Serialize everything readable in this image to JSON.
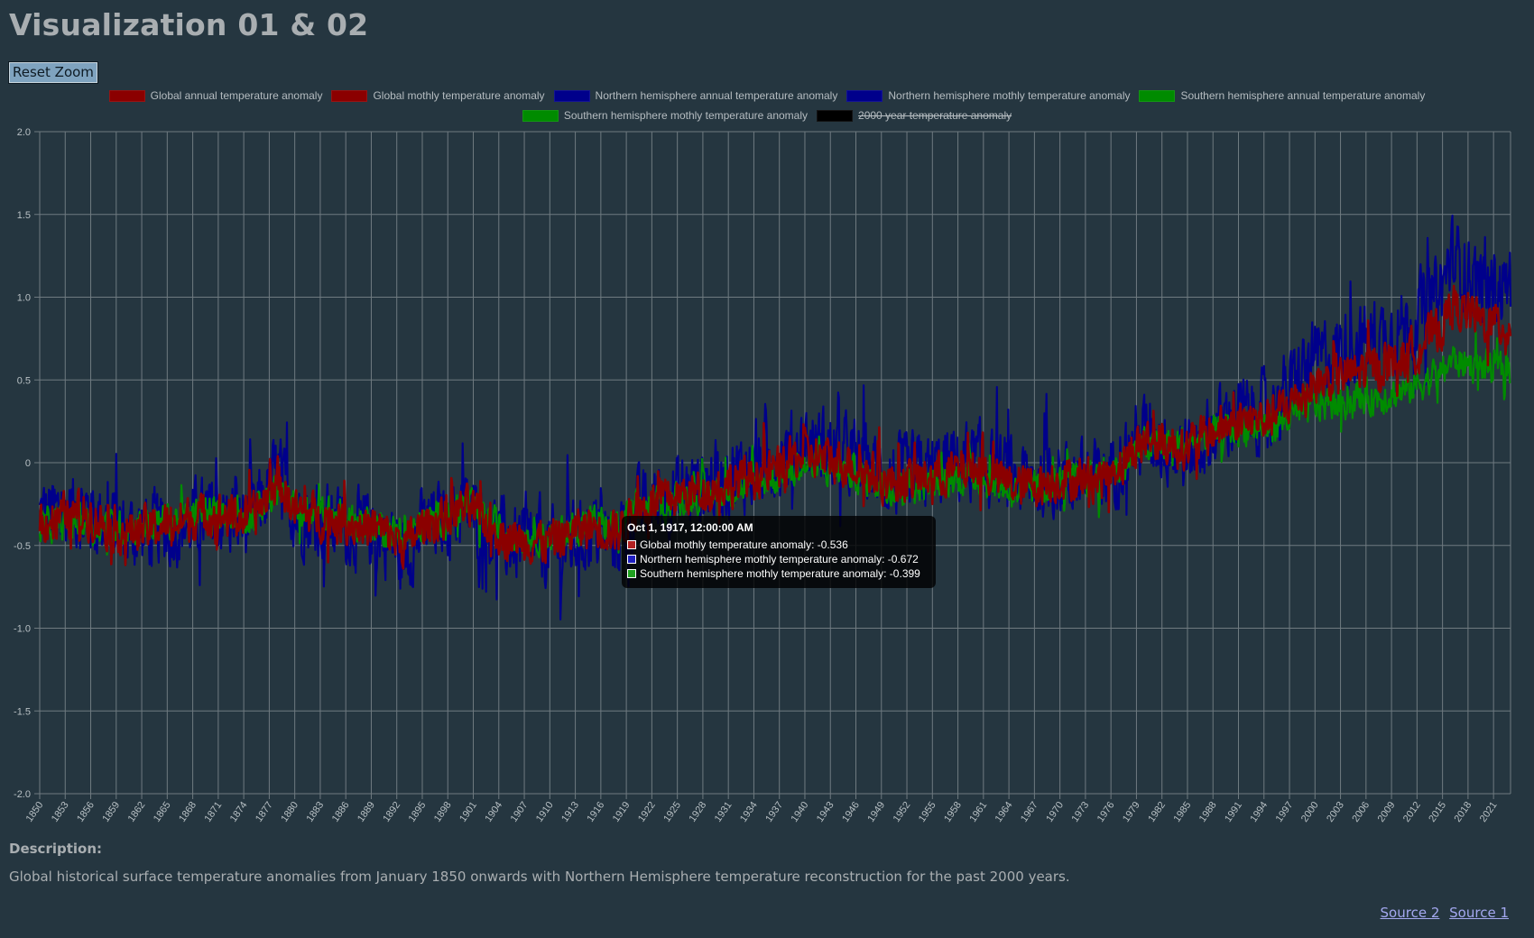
{
  "page": {
    "title": "Visualization 01 & 02",
    "reset_zoom_label": "Reset Zoom",
    "description_heading": "Description:",
    "description_text": "Global historical surface temperature anomalies from January 1850 onwards with Northern Hemisphere temperature reconstruction for the past 2000 years.",
    "sources": [
      "Source 2",
      "Source 1"
    ]
  },
  "colors": {
    "background": "#253640",
    "global": "#8b0000",
    "northern": "#00008b",
    "southern": "#008b00",
    "two_thousand": "#000000",
    "grid": "#6f7a80",
    "tick_text": "#b8c0c4"
  },
  "chart_data": {
    "type": "line",
    "title": "",
    "xlabel": "",
    "ylabel": "",
    "xlim": [
      1850,
      2023
    ],
    "ylim": [
      -2.0,
      2.0
    ],
    "y_ticks": [
      "2.0",
      "1.5",
      "1.0",
      "0.5",
      "0",
      "-0.5",
      "-1.0",
      "-1.5",
      "-2.0"
    ],
    "x_tick_labels": [
      "1850",
      "1853",
      "1856",
      "1859",
      "1862",
      "1865",
      "1868",
      "1871",
      "1874",
      "1877",
      "1880",
      "1883",
      "1886",
      "1889",
      "1892",
      "1895",
      "1898",
      "1901",
      "1904",
      "1907",
      "1910",
      "1913",
      "1916",
      "1919",
      "1922",
      "1925",
      "1928",
      "1931",
      "1934",
      "1937",
      "1940",
      "1943",
      "1946",
      "1949",
      "1952",
      "1955",
      "1958",
      "1961",
      "1964",
      "1967",
      "1970",
      "1973",
      "1976",
      "1979",
      "1982",
      "1985",
      "1988",
      "1991",
      "1994",
      "1997",
      "2000",
      "2003",
      "2006",
      "2009",
      "2012",
      "2015",
      "2018",
      "2021"
    ],
    "grid": true,
    "legend_position": "top",
    "legend": [
      {
        "label": "Global annual temperature anomaly",
        "color": "#8b0000",
        "hidden": false
      },
      {
        "label": "Global mothly temperature anomaly",
        "color": "#8b0000",
        "hidden": false
      },
      {
        "label": "Northern hemisphere annual temperature anomaly",
        "color": "#00008b",
        "hidden": false
      },
      {
        "label": "Northern hemisphere mothly temperature anomaly",
        "color": "#00008b",
        "hidden": false
      },
      {
        "label": "Southern hemisphere annual temperature anomaly",
        "color": "#008b00",
        "hidden": false
      },
      {
        "label": "Southern hemisphere mothly temperature anomaly",
        "color": "#008b00",
        "hidden": false
      },
      {
        "label": "2000 year temperature anomaly",
        "color": "#000000",
        "hidden": true
      }
    ],
    "series": [
      {
        "name": "Northern hemisphere mothly temperature anomaly",
        "color": "#00008b",
        "width": 2.2,
        "x": [
          1850,
          1855,
          1860,
          1865,
          1870,
          1875,
          1878,
          1880,
          1885,
          1890,
          1893,
          1895,
          1900,
          1905,
          1910,
          1915,
          1918,
          1920,
          1925,
          1930,
          1935,
          1940,
          1945,
          1950,
          1955,
          1960,
          1965,
          1970,
          1975,
          1980,
          1985,
          1990,
          1995,
          2000,
          2005,
          2010,
          2015,
          2016,
          2020,
          2023
        ],
        "y": [
          -0.32,
          -0.28,
          -0.42,
          -0.4,
          -0.32,
          -0.35,
          -0.05,
          -0.3,
          -0.38,
          -0.42,
          -0.55,
          -0.4,
          -0.28,
          -0.48,
          -0.52,
          -0.42,
          -0.45,
          -0.3,
          -0.18,
          -0.1,
          -0.02,
          0.12,
          0.05,
          -0.1,
          -0.05,
          0.02,
          -0.12,
          -0.08,
          -0.1,
          0.18,
          0.05,
          0.28,
          0.32,
          0.62,
          0.72,
          0.8,
          1.05,
          1.25,
          1.05,
          1.08
        ],
        "amplitude": 0.32
      },
      {
        "name": "Southern hemisphere mothly temperature anomaly",
        "color": "#008b00",
        "width": 2.2,
        "x": [
          1850,
          1855,
          1860,
          1865,
          1870,
          1875,
          1878,
          1880,
          1885,
          1890,
          1893,
          1895,
          1900,
          1905,
          1910,
          1915,
          1918,
          1920,
          1925,
          1930,
          1935,
          1940,
          1945,
          1950,
          1955,
          1960,
          1965,
          1970,
          1975,
          1980,
          1985,
          1990,
          1995,
          2000,
          2005,
          2010,
          2015,
          2016,
          2020,
          2023
        ],
        "y": [
          -0.38,
          -0.35,
          -0.4,
          -0.35,
          -0.3,
          -0.32,
          -0.15,
          -0.28,
          -0.32,
          -0.38,
          -0.45,
          -0.38,
          -0.25,
          -0.42,
          -0.45,
          -0.35,
          -0.4,
          -0.28,
          -0.22,
          -0.18,
          -0.12,
          -0.02,
          -0.05,
          -0.15,
          -0.12,
          -0.08,
          -0.18,
          -0.12,
          -0.08,
          0.1,
          0.12,
          0.2,
          0.22,
          0.35,
          0.38,
          0.42,
          0.55,
          0.62,
          0.58,
          0.55
        ],
        "amplitude": 0.14
      },
      {
        "name": "Global mothly temperature anomaly",
        "color": "#8b0000",
        "width": 2.6,
        "x": [
          1850,
          1855,
          1860,
          1865,
          1870,
          1875,
          1878,
          1880,
          1885,
          1890,
          1893,
          1895,
          1900,
          1905,
          1910,
          1915,
          1918,
          1920,
          1925,
          1930,
          1935,
          1940,
          1945,
          1950,
          1955,
          1960,
          1965,
          1970,
          1975,
          1980,
          1985,
          1990,
          1995,
          2000,
          2005,
          2010,
          2015,
          2016,
          2020,
          2023
        ],
        "y": [
          -0.35,
          -0.3,
          -0.42,
          -0.38,
          -0.31,
          -0.34,
          -0.1,
          -0.29,
          -0.35,
          -0.4,
          -0.5,
          -0.39,
          -0.27,
          -0.45,
          -0.48,
          -0.38,
          -0.42,
          -0.29,
          -0.2,
          -0.14,
          -0.07,
          0.05,
          0.0,
          -0.12,
          -0.08,
          -0.03,
          -0.15,
          -0.1,
          -0.09,
          0.14,
          0.09,
          0.24,
          0.27,
          0.48,
          0.55,
          0.62,
          0.82,
          0.95,
          0.85,
          0.82
        ],
        "amplitude": 0.18
      }
    ],
    "annotations": {
      "tooltip": {
        "title": "Oct 1, 1917, 12:00:00 AM",
        "x": 1917.75,
        "items": [
          {
            "label": "Global mothly temperature anomaly: -0.536",
            "color": "#b22222"
          },
          {
            "label": "Northern hemisphere mothly temperature anomaly: -0.672",
            "color": "#2020c0"
          },
          {
            "label": "Southern hemisphere mothly temperature anomaly: -0.399",
            "color": "#20a020"
          }
        ]
      }
    }
  }
}
